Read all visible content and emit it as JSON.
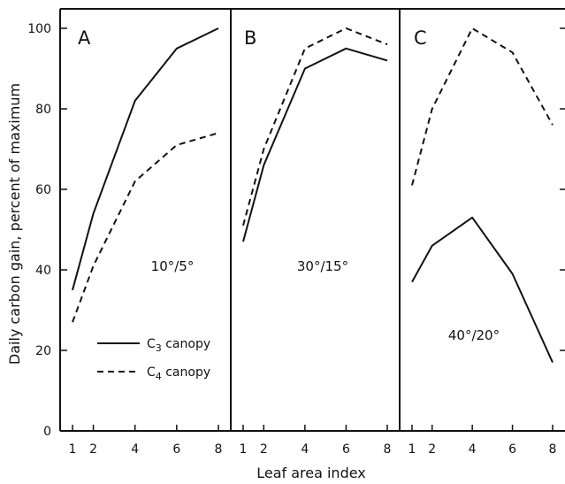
{
  "chart_data": {
    "type": "line",
    "ylabel": "Daily carbon gain, percent of maximum",
    "xlabel": "Leaf area index",
    "ylim": [
      0,
      105
    ],
    "y_ticks": [
      0,
      20,
      40,
      60,
      80,
      100
    ],
    "x_ticks": [
      1,
      2,
      4,
      6,
      8
    ],
    "grid": false,
    "legend": {
      "placement": "bottom-left of panel A",
      "entries": [
        {
          "series": "C3",
          "label": "C3 canopy",
          "style": "solid"
        },
        {
          "series": "C4",
          "label": "C4 canopy",
          "style": "dashed"
        }
      ]
    },
    "panels": [
      {
        "letter": "A",
        "temperature": "10°/5°",
        "series": [
          {
            "id": "C3",
            "style": "solid",
            "x": [
              1,
              2,
              4,
              6,
              8
            ],
            "y": [
              35,
              54,
              82,
              95,
              100
            ]
          },
          {
            "id": "C4",
            "style": "dashed",
            "x": [
              1,
              2,
              4,
              6,
              8
            ],
            "y": [
              27,
              41,
              62,
              71,
              74
            ]
          }
        ]
      },
      {
        "letter": "B",
        "temperature": "30°/15°",
        "series": [
          {
            "id": "C3",
            "style": "solid",
            "x": [
              1,
              2,
              4,
              6,
              8
            ],
            "y": [
              47,
              66,
              90,
              95,
              92
            ]
          },
          {
            "id": "C4",
            "style": "dashed",
            "x": [
              1,
              2,
              4,
              6,
              8
            ],
            "y": [
              51,
              70,
              95,
              100,
              96
            ]
          }
        ]
      },
      {
        "letter": "C",
        "temperature": "40°/20°",
        "series": [
          {
            "id": "C3",
            "style": "solid",
            "x": [
              1,
              2,
              4,
              6,
              8
            ],
            "y": [
              37,
              46,
              53,
              39,
              17
            ]
          },
          {
            "id": "C4",
            "style": "dashed",
            "x": [
              1,
              2,
              4,
              6,
              8
            ],
            "y": [
              61,
              80,
              100,
              94,
              76
            ]
          }
        ]
      }
    ]
  }
}
